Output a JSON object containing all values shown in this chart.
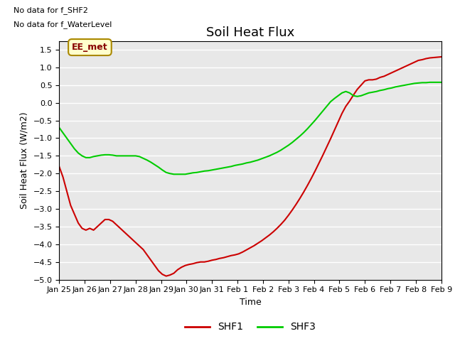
{
  "title": "Soil Heat Flux",
  "ylabel": "Soil Heat Flux (W/m2)",
  "xlabel": "Time",
  "text_no_data_1": "No data for f_SHF2",
  "text_no_data_2": "No data for f_WaterLevel",
  "legend_box_label": "EE_met",
  "ylim": [
    -5.0,
    1.75
  ],
  "yticks": [
    -5.0,
    -4.5,
    -4.0,
    -3.5,
    -3.0,
    -2.5,
    -2.0,
    -1.5,
    -1.0,
    -0.5,
    0.0,
    0.5,
    1.0,
    1.5
  ],
  "xtick_labels": [
    "Jan 25",
    "Jan 26",
    "Jan 27",
    "Jan 28",
    "Jan 29",
    "Jan 30",
    "Jan 31",
    "Feb 1",
    "Feb 2",
    "Feb 3",
    "Feb 4",
    "Feb 5",
    "Feb 6",
    "Feb 7",
    "Feb 8",
    "Feb 9"
  ],
  "shf1_color": "#cc0000",
  "shf3_color": "#00cc00",
  "bg_color": "#e8e8e8",
  "shf1_x": [
    0,
    0.15,
    0.3,
    0.45,
    0.6,
    0.75,
    0.9,
    1.05,
    1.2,
    1.35,
    1.5,
    1.65,
    1.8,
    1.95,
    2.1,
    2.25,
    2.4,
    2.55,
    2.7,
    2.85,
    3.0,
    3.15,
    3.3,
    3.45,
    3.6,
    3.75,
    3.9,
    4.05,
    4.2,
    4.35,
    4.5,
    4.65,
    4.8,
    4.95,
    5.1,
    5.25,
    5.4,
    5.55,
    5.7,
    5.85,
    6.0,
    6.15,
    6.3,
    6.45,
    6.6,
    6.75,
    6.9,
    7.05,
    7.2,
    7.35,
    7.5,
    7.65,
    7.8,
    7.95,
    8.1,
    8.25,
    8.4,
    8.55,
    8.7,
    8.85,
    9.0,
    9.15,
    9.3,
    9.45,
    9.6,
    9.75,
    9.9,
    10.05,
    10.2,
    10.35,
    10.5,
    10.65,
    10.8,
    10.95,
    11.1,
    11.25,
    11.4,
    11.55,
    11.7,
    11.85,
    12.0,
    12.15,
    12.3,
    12.45,
    12.6,
    12.75,
    12.9,
    13.05,
    13.2,
    13.35,
    13.5,
    13.65,
    13.8,
    13.95,
    14.1,
    14.25,
    14.4,
    14.55,
    14.7,
    14.85,
    15.0
  ],
  "shf1_y": [
    -1.8,
    -2.1,
    -2.5,
    -2.9,
    -3.15,
    -3.4,
    -3.55,
    -3.6,
    -3.55,
    -3.6,
    -3.5,
    -3.4,
    -3.3,
    -3.3,
    -3.35,
    -3.45,
    -3.55,
    -3.65,
    -3.75,
    -3.85,
    -3.95,
    -4.05,
    -4.15,
    -4.3,
    -4.45,
    -4.6,
    -4.75,
    -4.85,
    -4.9,
    -4.87,
    -4.82,
    -4.72,
    -4.65,
    -4.6,
    -4.57,
    -4.55,
    -4.52,
    -4.5,
    -4.5,
    -4.48,
    -4.45,
    -4.43,
    -4.4,
    -4.38,
    -4.35,
    -4.32,
    -4.3,
    -4.27,
    -4.22,
    -4.16,
    -4.1,
    -4.04,
    -3.97,
    -3.9,
    -3.82,
    -3.74,
    -3.65,
    -3.55,
    -3.44,
    -3.32,
    -3.18,
    -3.03,
    -2.87,
    -2.7,
    -2.52,
    -2.33,
    -2.13,
    -1.92,
    -1.7,
    -1.48,
    -1.25,
    -1.02,
    -0.78,
    -0.54,
    -0.3,
    -0.1,
    0.05,
    0.22,
    0.38,
    0.5,
    0.62,
    0.65,
    0.65,
    0.67,
    0.72,
    0.75,
    0.8,
    0.85,
    0.9,
    0.95,
    1.0,
    1.05,
    1.1,
    1.15,
    1.2,
    1.22,
    1.25,
    1.27,
    1.28,
    1.29,
    1.3
  ],
  "shf3_x": [
    0,
    0.15,
    0.3,
    0.45,
    0.6,
    0.75,
    0.9,
    1.05,
    1.2,
    1.35,
    1.5,
    1.65,
    1.8,
    1.95,
    2.1,
    2.25,
    2.4,
    2.55,
    2.7,
    2.85,
    3.0,
    3.15,
    3.3,
    3.45,
    3.6,
    3.75,
    3.9,
    4.05,
    4.2,
    4.35,
    4.5,
    4.65,
    4.8,
    4.95,
    5.1,
    5.25,
    5.4,
    5.55,
    5.7,
    5.85,
    6.0,
    6.15,
    6.3,
    6.45,
    6.6,
    6.75,
    6.9,
    7.05,
    7.2,
    7.35,
    7.5,
    7.65,
    7.8,
    7.95,
    8.1,
    8.25,
    8.4,
    8.55,
    8.7,
    8.85,
    9.0,
    9.15,
    9.3,
    9.45,
    9.6,
    9.75,
    9.9,
    10.05,
    10.2,
    10.35,
    10.5,
    10.65,
    10.8,
    10.95,
    11.1,
    11.25,
    11.4,
    11.55,
    11.7,
    11.85,
    12.0,
    12.15,
    12.3,
    12.45,
    12.6,
    12.75,
    12.9,
    13.05,
    13.2,
    13.35,
    13.5,
    13.65,
    13.8,
    13.95,
    14.1,
    14.25,
    14.4,
    14.55,
    14.7,
    14.85,
    15.0
  ],
  "shf3_y": [
    -0.7,
    -0.85,
    -1.0,
    -1.15,
    -1.3,
    -1.42,
    -1.5,
    -1.55,
    -1.55,
    -1.52,
    -1.5,
    -1.48,
    -1.47,
    -1.47,
    -1.48,
    -1.5,
    -1.5,
    -1.5,
    -1.5,
    -1.5,
    -1.5,
    -1.52,
    -1.57,
    -1.62,
    -1.68,
    -1.75,
    -1.82,
    -1.9,
    -1.97,
    -2.0,
    -2.02,
    -2.02,
    -2.02,
    -2.02,
    -2.0,
    -1.98,
    -1.97,
    -1.95,
    -1.93,
    -1.92,
    -1.9,
    -1.88,
    -1.86,
    -1.84,
    -1.82,
    -1.8,
    -1.77,
    -1.75,
    -1.73,
    -1.7,
    -1.68,
    -1.65,
    -1.62,
    -1.58,
    -1.54,
    -1.5,
    -1.45,
    -1.4,
    -1.34,
    -1.27,
    -1.2,
    -1.12,
    -1.03,
    -0.94,
    -0.84,
    -0.73,
    -0.61,
    -0.49,
    -0.36,
    -0.23,
    -0.1,
    0.03,
    0.12,
    0.2,
    0.28,
    0.32,
    0.28,
    0.2,
    0.18,
    0.2,
    0.24,
    0.28,
    0.3,
    0.32,
    0.35,
    0.37,
    0.4,
    0.42,
    0.45,
    0.47,
    0.49,
    0.51,
    0.53,
    0.55,
    0.56,
    0.57,
    0.57,
    0.58,
    0.58,
    0.58,
    0.58
  ]
}
